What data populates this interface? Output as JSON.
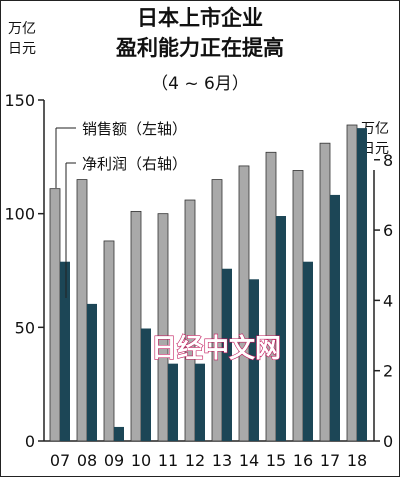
{
  "chart_data": {
    "type": "bar",
    "title_lines": [
      "日本上市企业",
      "盈利能力正在提高"
    ],
    "subtitle": "（4 ~ 6月）",
    "left_unit": [
      "万亿",
      "日元"
    ],
    "right_unit": [
      "万亿",
      "日元"
    ],
    "categories": [
      "07",
      "08",
      "09",
      "10",
      "11",
      "12",
      "13",
      "14",
      "15",
      "16",
      "17",
      "18"
    ],
    "series": [
      {
        "name": "销售额（左轴）",
        "axis": "left",
        "color": "#a9a9a9",
        "values": [
          111,
          115,
          88,
          101,
          100,
          106,
          115,
          121,
          127,
          119,
          131,
          139
        ]
      },
      {
        "name": "净利润（右轴）",
        "axis": "right",
        "color": "#1c4656",
        "values": [
          5.1,
          3.9,
          0.4,
          3.2,
          2.2,
          2.2,
          4.9,
          4.6,
          6.4,
          5.1,
          7.0,
          8.9
        ]
      }
    ],
    "left_axis": {
      "range": [
        0,
        150
      ],
      "ticks": [
        0,
        50,
        100,
        150
      ]
    },
    "right_axis": {
      "range": [
        0,
        9.7
      ],
      "ticks": [
        0,
        2,
        4,
        6,
        8
      ]
    },
    "watermark": "日经中文网",
    "grid": false,
    "legend_placement": "top-left"
  }
}
